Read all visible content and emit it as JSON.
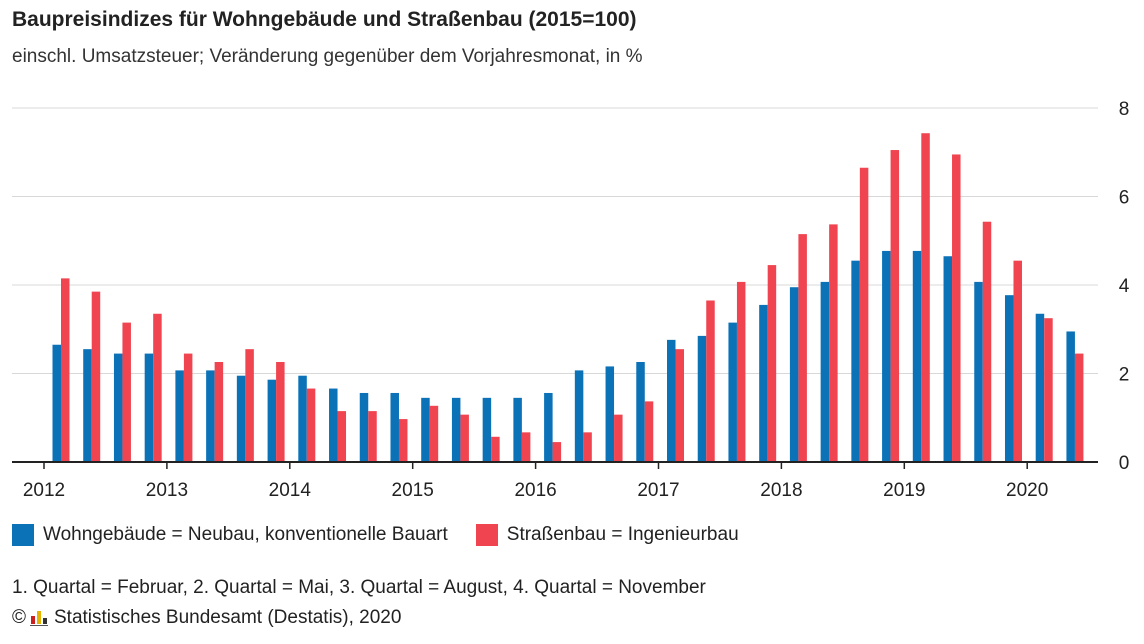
{
  "title": "Baupreisindizes für Wohngebäude und Straßenbau (2015=100)",
  "subtitle": "einschl. Umsatzsteuer; Veränderung gegenüber dem Vorjahresmonat, in %",
  "footnote": "1. Quartal = Februar, 2. Quartal = Mai, 3. Quartal = August, 4. Quartal = November",
  "source": {
    "copyright": "©",
    "text": "Statistisches Bundesamt (Destatis), 2020",
    "logo_icon": "destatis-logo-icon"
  },
  "colors": {
    "blue": "#0b72b8",
    "red": "#f04550",
    "grid": "#d8d8d8",
    "axis": "#222222"
  },
  "chart_data": {
    "type": "bar",
    "x_tick_labels": [
      "2012",
      "2013",
      "2014",
      "2015",
      "2016",
      "2017",
      "2018",
      "2019",
      "2020"
    ],
    "y_ticks": [
      "0",
      "2",
      "4",
      "6",
      "8"
    ],
    "ylim": [
      0,
      8
    ],
    "grid": true,
    "y_axis_side": "right",
    "legend_position": "bottom-left",
    "categories": [
      "2012 Q1",
      "2012 Q2",
      "2012 Q3",
      "2012 Q4",
      "2013 Q1",
      "2013 Q2",
      "2013 Q3",
      "2013 Q4",
      "2014 Q1",
      "2014 Q2",
      "2014 Q3",
      "2014 Q4",
      "2015 Q1",
      "2015 Q2",
      "2015 Q3",
      "2015 Q4",
      "2016 Q1",
      "2016 Q2",
      "2016 Q3",
      "2016 Q4",
      "2017 Q1",
      "2017 Q2",
      "2017 Q3",
      "2017 Q4",
      "2018 Q1",
      "2018 Q2",
      "2018 Q3",
      "2018 Q4",
      "2019 Q1",
      "2019 Q2",
      "2019 Q3",
      "2019 Q4",
      "2020 Q1",
      "2020 Q2"
    ],
    "series": [
      {
        "name": "Wohngebäude = Neubau, konventionelle Bauart",
        "color": "#0b72b8",
        "values": [
          2.65,
          2.55,
          2.45,
          2.45,
          2.07,
          2.07,
          1.95,
          1.86,
          1.95,
          1.66,
          1.56,
          1.56,
          1.45,
          1.45,
          1.45,
          1.45,
          1.56,
          2.07,
          2.16,
          2.26,
          2.76,
          2.85,
          3.15,
          3.55,
          3.95,
          4.07,
          4.55,
          4.77,
          4.77,
          4.65,
          4.07,
          3.77,
          3.35,
          2.95
        ]
      },
      {
        "name": "Straßenbau = Ingenieurbau",
        "color": "#f04550",
        "values": [
          4.15,
          3.85,
          3.15,
          3.35,
          2.45,
          2.26,
          2.55,
          2.26,
          1.66,
          1.15,
          1.15,
          0.97,
          1.27,
          1.07,
          0.57,
          0.67,
          0.45,
          0.67,
          1.07,
          1.37,
          2.55,
          3.65,
          4.07,
          4.45,
          5.15,
          5.37,
          6.65,
          7.05,
          7.43,
          6.95,
          5.43,
          4.55,
          3.25,
          2.45
        ]
      }
    ]
  }
}
